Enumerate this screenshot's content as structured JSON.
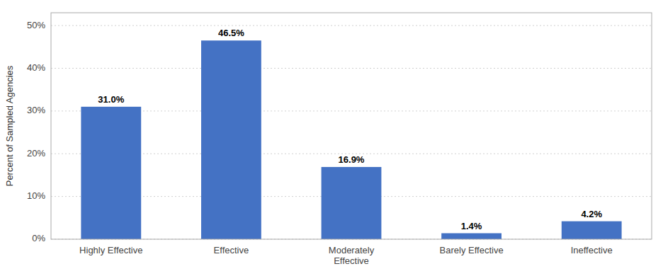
{
  "chart_data": {
    "type": "bar",
    "categories": [
      "Highly Effective",
      "Effective",
      "Moderately\nEffective",
      "Barely Effective",
      "Ineffective"
    ],
    "values": [
      31.0,
      46.5,
      16.9,
      1.4,
      4.2
    ],
    "value_labels": [
      "31.0%",
      "46.5%",
      "16.9%",
      "1.4%",
      "4.2%"
    ],
    "data_labels": true,
    "color": "#4472C4",
    "ylabel": "Percent of Sampled Agencies",
    "ylim": [
      0,
      53
    ],
    "yticks": [
      {
        "value": 0,
        "label": "0%"
      },
      {
        "value": 10,
        "label": "10%"
      },
      {
        "value": 20,
        "label": "20%"
      },
      {
        "value": 30,
        "label": "30%"
      },
      {
        "value": 40,
        "label": "40%"
      },
      {
        "value": 50,
        "label": "50%"
      }
    ],
    "grid": true
  }
}
